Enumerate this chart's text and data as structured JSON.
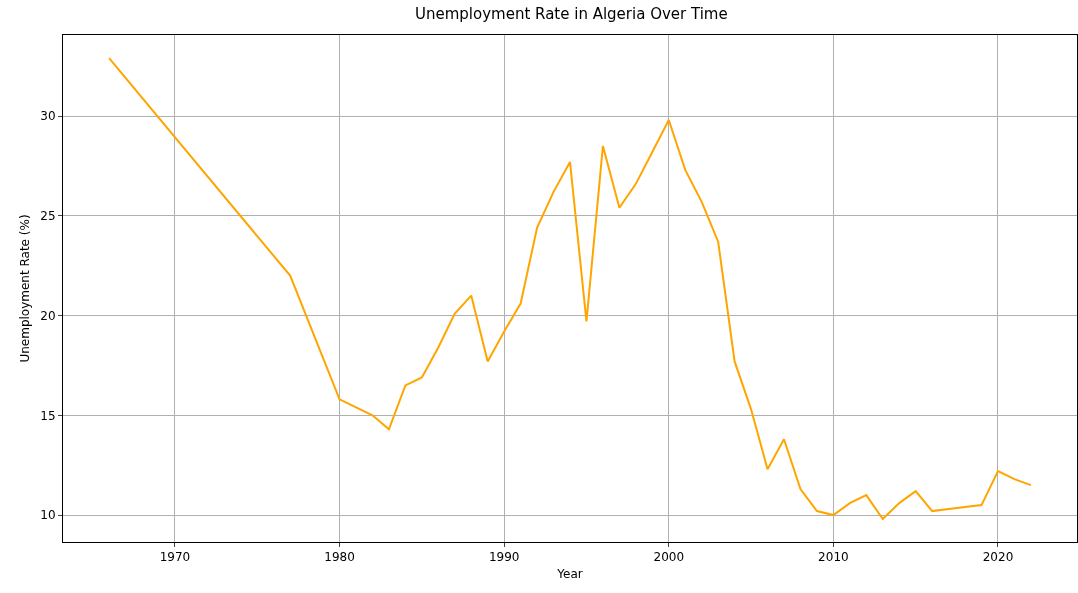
{
  "chart_data": {
    "type": "line",
    "title": "Unemployment Rate in Algeria Over Time",
    "xlabel": "Year",
    "ylabel": "Unemployment Rate (%)",
    "x": [
      1966,
      1977,
      1980,
      1982,
      1983,
      1984,
      1985,
      1986,
      1987,
      1988,
      1989,
      1990,
      1991,
      1992,
      1993,
      1994,
      1995,
      1996,
      1997,
      1998,
      1999,
      2000,
      2001,
      2002,
      2003,
      2004,
      2005,
      2006,
      2007,
      2008,
      2009,
      2010,
      2011,
      2012,
      2013,
      2014,
      2015,
      2016,
      2017,
      2018,
      2019,
      2020,
      2021,
      2022
    ],
    "series": [
      {
        "color": "#ffa500",
        "values": [
          32.9,
          22.0,
          15.8,
          15.0,
          14.3,
          16.5,
          16.9,
          18.4,
          20.1,
          21.0,
          17.7,
          19.2,
          20.6,
          24.4,
          26.2,
          27.7,
          19.7,
          28.5,
          25.4,
          26.6,
          28.2,
          29.8,
          27.3,
          25.7,
          23.7,
          17.7,
          15.3,
          12.3,
          13.8,
          11.3,
          10.2,
          10.0,
          10.6,
          11.0,
          9.8,
          10.6,
          11.2,
          10.2,
          10.3,
          10.4,
          10.5,
          12.2,
          11.8,
          11.5
        ]
      }
    ],
    "xlim": [
      1963.2,
      2024.8
    ],
    "xticks": [
      1970,
      1980,
      1990,
      2000,
      2010,
      2020
    ],
    "ylim": [
      8.65,
      34.06
    ],
    "yticks": [
      10,
      15,
      20,
      25,
      30
    ],
    "grid": true,
    "marker": "none",
    "line_style": "solid"
  }
}
